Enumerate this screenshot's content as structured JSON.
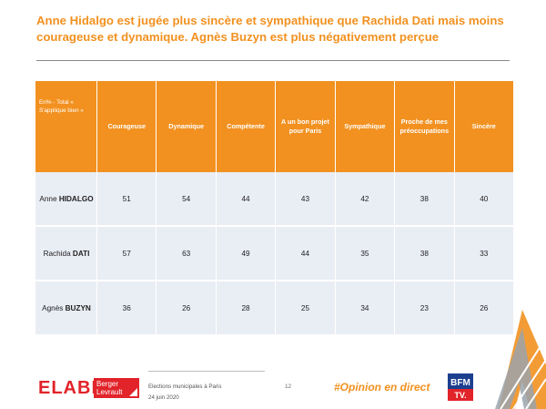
{
  "title": "Anne Hidalgo est jugée plus sincère et sympathique que Rachida Dati mais moins courageuse et dynamique. Agnès Buzyn est plus négativement perçue",
  "table": {
    "corner_label": "En% - Total « S'applique bien »",
    "columns": [
      "Courageuse",
      "Dynamique",
      "Compétente",
      "A un bon projet pour Paris",
      "Sympathique",
      "Proche de mes préoccupations",
      "Sincère"
    ],
    "rows": [
      {
        "first": "Anne",
        "last": "HIDALGO",
        "values": [
          "51",
          "54",
          "44",
          "43",
          "42",
          "38",
          "40"
        ]
      },
      {
        "first": "Rachida",
        "last": "DATI",
        "values": [
          "57",
          "63",
          "49",
          "44",
          "35",
          "38",
          "33"
        ]
      },
      {
        "first": "Agnès",
        "last": "BUZYN",
        "values": [
          "36",
          "26",
          "28",
          "25",
          "34",
          "23",
          "26"
        ]
      }
    ]
  },
  "footer": {
    "logo_elabe": "ELABE",
    "logo_partner_line1": "Berger",
    "logo_partner_line2": "Levrault",
    "event": "Elections municipales à Paris",
    "date": "24 juin 2020",
    "page": "12",
    "hashtag": "#Opinion en direct",
    "bfm_top": "BFM",
    "bfm_bottom": "TV."
  },
  "colors": {
    "accent": "#f29120",
    "cell_bg": "#e9edf4",
    "elabe_red": "#e2232a",
    "bfm_blue": "#1c3f8f"
  }
}
